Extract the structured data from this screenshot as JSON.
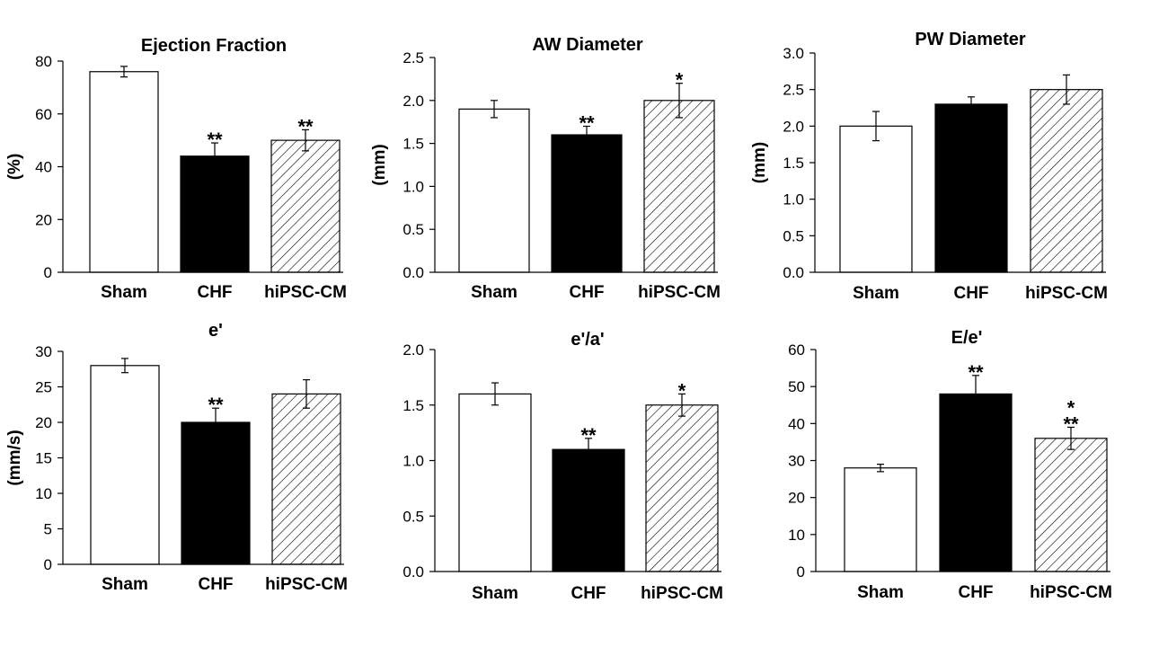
{
  "chart_data": [
    {
      "type": "bar",
      "title": "Ejection Fraction",
      "ylabel": "(%)",
      "categories": [
        "Sham",
        "CHF",
        "hiPSC-CM"
      ],
      "values": [
        76,
        44,
        50
      ],
      "errors": [
        2,
        5,
        4
      ],
      "significance": [
        "",
        "**",
        "**"
      ],
      "ylim": [
        0,
        80
      ],
      "yticks": [
        "0",
        "20",
        "40",
        "60",
        "80"
      ],
      "fills": [
        "white",
        "black",
        "hatched"
      ]
    },
    {
      "type": "bar",
      "title": "AW Diameter",
      "ylabel": "(mm)",
      "categories": [
        "Sham",
        "CHF",
        "hiPSC-CM"
      ],
      "values": [
        1.9,
        1.6,
        2.0
      ],
      "errors": [
        0.1,
        0.1,
        0.2
      ],
      "significance": [
        "",
        "**",
        "*"
      ],
      "ylim": [
        0,
        2.5
      ],
      "yticks": [
        "0.0",
        "0.5",
        "1.0",
        "1.5",
        "2.0",
        "2.5"
      ],
      "fills": [
        "white",
        "black",
        "hatched"
      ]
    },
    {
      "type": "bar",
      "title": "PW Diameter",
      "ylabel": "(mm)",
      "categories": [
        "Sham",
        "CHF",
        "hiPSC-CM"
      ],
      "values": [
        2.0,
        2.3,
        2.5
      ],
      "errors": [
        0.2,
        0.1,
        0.2
      ],
      "significance": [
        "",
        "",
        ""
      ],
      "ylim": [
        0,
        3.0
      ],
      "yticks": [
        "0.0",
        "0.5",
        "1.0",
        "1.5",
        "2.0",
        "2.5",
        "3.0"
      ],
      "fills": [
        "white",
        "black",
        "hatched"
      ]
    },
    {
      "type": "bar",
      "title": "e'",
      "ylabel": "(mm/s)",
      "categories": [
        "Sham",
        "CHF",
        "hiPSC-CM"
      ],
      "values": [
        28,
        20,
        24
      ],
      "errors": [
        1,
        2,
        2
      ],
      "significance": [
        "",
        "**",
        ""
      ],
      "ylim": [
        0,
        30
      ],
      "yticks": [
        "0",
        "5",
        "10",
        "15",
        "20",
        "25",
        "30"
      ],
      "fills": [
        "white",
        "black",
        "hatched"
      ]
    },
    {
      "type": "bar",
      "title": "e'/a'",
      "ylabel": "",
      "categories": [
        "Sham",
        "CHF",
        "hiPSC-CM"
      ],
      "values": [
        1.6,
        1.1,
        1.5
      ],
      "errors": [
        0.1,
        0.1,
        0.1
      ],
      "significance": [
        "",
        "**",
        "*"
      ],
      "ylim": [
        0,
        2.0
      ],
      "yticks": [
        "0.0",
        "0.5",
        "1.0",
        "1.5",
        "2.0"
      ],
      "fills": [
        "white",
        "black",
        "hatched"
      ]
    },
    {
      "type": "bar",
      "title": "E/e'",
      "ylabel": "",
      "categories": [
        "Sham",
        "CHF",
        "hiPSC-CM"
      ],
      "values": [
        28,
        48,
        36
      ],
      "errors": [
        1,
        5,
        3
      ],
      "significance": [
        "",
        "**",
        "*\n**"
      ],
      "ylim": [
        0,
        60
      ],
      "yticks": [
        "0",
        "10",
        "20",
        "30",
        "40",
        "50",
        "60"
      ],
      "fills": [
        "white",
        "black",
        "hatched"
      ]
    }
  ]
}
